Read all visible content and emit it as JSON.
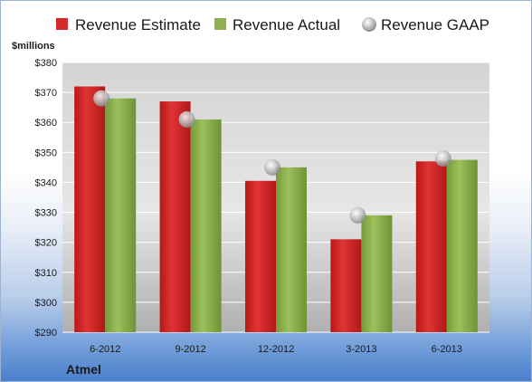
{
  "chart_data": {
    "type": "bar",
    "ylabel": "$millions",
    "company": "Atmel",
    "categories": [
      "6-2012",
      "9-2012",
      "12-2012",
      "3-2013",
      "6-2013"
    ],
    "series": [
      {
        "name": "Revenue Estimate",
        "kind": "bar",
        "color": "#d42a2a",
        "values": [
          372,
          367,
          340.5,
          321,
          347
        ]
      },
      {
        "name": "Revenue Actual",
        "kind": "bar",
        "color": "#8db14e",
        "values": [
          368,
          361,
          345,
          329,
          347.5
        ]
      },
      {
        "name": "Revenue GAAP",
        "kind": "marker",
        "color": "#b8b8b8",
        "values": [
          368,
          361,
          345,
          329,
          348
        ]
      }
    ],
    "ylim": [
      290,
      380
    ],
    "yticks": [
      "$290",
      "$300",
      "$310",
      "$320",
      "$330",
      "$340",
      "$350",
      "$360",
      "$370",
      "$380"
    ],
    "grid": true,
    "legend_position": "top"
  }
}
